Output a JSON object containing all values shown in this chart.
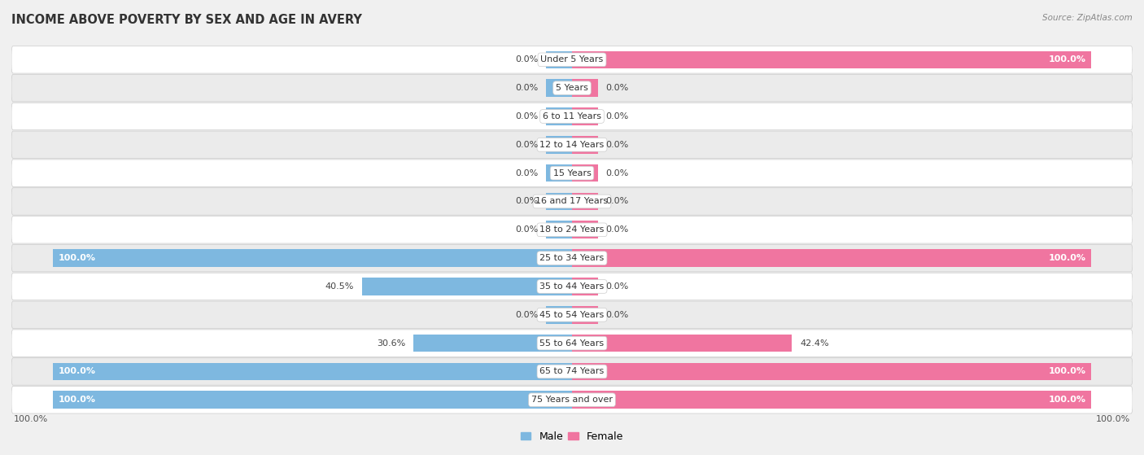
{
  "title": "INCOME ABOVE POVERTY BY SEX AND AGE IN AVERY",
  "source": "Source: ZipAtlas.com",
  "categories": [
    "Under 5 Years",
    "5 Years",
    "6 to 11 Years",
    "12 to 14 Years",
    "15 Years",
    "16 and 17 Years",
    "18 to 24 Years",
    "25 to 34 Years",
    "35 to 44 Years",
    "45 to 54 Years",
    "55 to 64 Years",
    "65 to 74 Years",
    "75 Years and over"
  ],
  "male_values": [
    0.0,
    0.0,
    0.0,
    0.0,
    0.0,
    0.0,
    0.0,
    100.0,
    40.5,
    0.0,
    30.6,
    100.0,
    100.0
  ],
  "female_values": [
    100.0,
    0.0,
    0.0,
    0.0,
    0.0,
    0.0,
    0.0,
    100.0,
    0.0,
    0.0,
    42.4,
    100.0,
    100.0
  ],
  "male_color": "#7eb8e0",
  "female_color": "#f075a0",
  "bar_height": 0.62,
  "bg_color": "#f0f0f0",
  "row_bg_white": "#ffffff",
  "row_bg_gray": "#ebebeb",
  "label_fontsize": 8.0,
  "title_fontsize": 10.5,
  "axis_max": 100.0,
  "stub_size": 5.0,
  "legend_male": "Male",
  "legend_female": "Female"
}
